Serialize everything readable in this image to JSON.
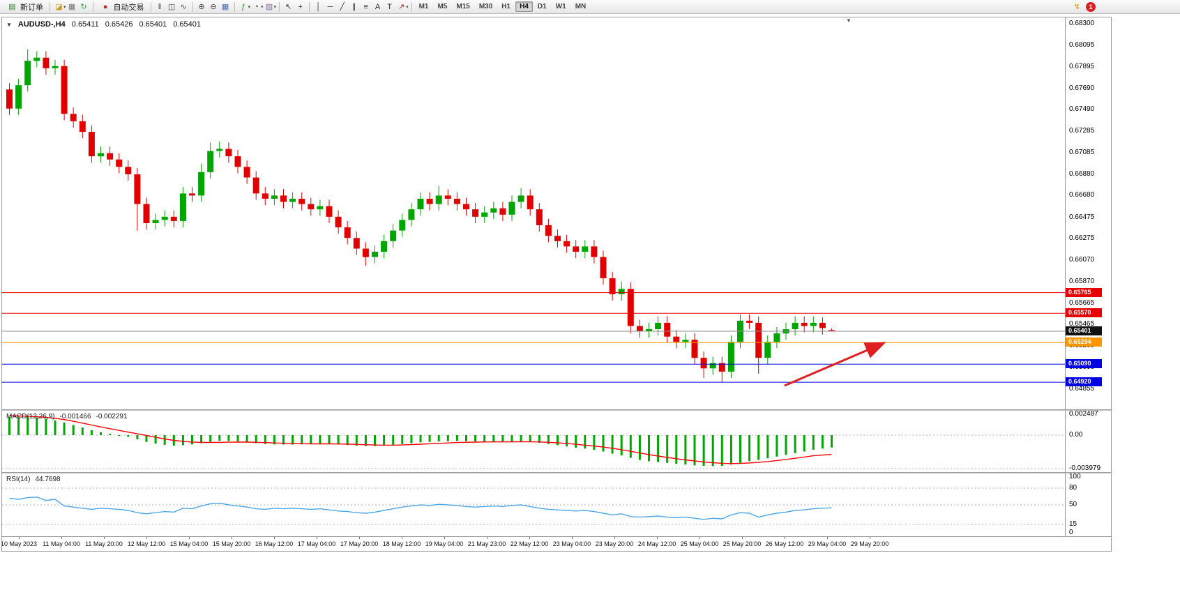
{
  "toolbar": {
    "new_order": {
      "label": "新订单",
      "glyph": "▤",
      "color": "#2d8a2d"
    },
    "autotrading": {
      "label": "自动交易",
      "glyph": "●",
      "color": "#d02020"
    },
    "icon_groups": [
      [
        {
          "name": "new-chart-icon",
          "glyph": "◪",
          "color": "#c89b1e",
          "caret": true
        },
        {
          "name": "print-icon",
          "glyph": "▦",
          "color": "#7a7a7a"
        },
        {
          "name": "refresh-icon",
          "glyph": "↻",
          "color": "#2f9e2f"
        }
      ],
      [
        {
          "name": "bar-chart-icon",
          "glyph": "‖",
          "color": "#444444"
        },
        {
          "name": "candlestick-chart-icon",
          "glyph": "◫",
          "color": "#444444"
        },
        {
          "name": "line-chart-icon",
          "glyph": "∿",
          "color": "#444444"
        }
      ],
      [
        {
          "name": "zoom-in-icon",
          "glyph": "⊕",
          "color": "#444444"
        },
        {
          "name": "zoom-out-icon",
          "glyph": "⊖",
          "color": "#444444"
        },
        {
          "name": "tile-windows-icon",
          "glyph": "▦",
          "color": "#4a6ea9"
        }
      ],
      [
        {
          "name": "indicators-icon",
          "glyph": "ƒ",
          "color": "#2d8a2d",
          "caret": true
        },
        {
          "name": "periods-icon",
          "glyph": "◔",
          "color": "#444444",
          "caret": true
        },
        {
          "name": "templates-icon",
          "glyph": "▨",
          "color": "#8a6bb0",
          "caret": true
        }
      ],
      [
        {
          "name": "cursor-icon",
          "glyph": "↖",
          "color": "#333333"
        },
        {
          "name": "crosshair-icon",
          "glyph": "+",
          "color": "#333333"
        }
      ],
      [
        {
          "name": "vertical-line-icon",
          "glyph": "│",
          "color": "#333333"
        },
        {
          "name": "horizontal-line-icon",
          "glyph": "─",
          "color": "#333333"
        },
        {
          "name": "trendline-icon",
          "glyph": "╱",
          "color": "#333333"
        },
        {
          "name": "channel-icon",
          "glyph": "∥",
          "color": "#333333"
        },
        {
          "name": "fibonacci-icon",
          "glyph": "≡",
          "color": "#333333"
        },
        {
          "name": "text-icon",
          "glyph": "A",
          "color": "#333333"
        },
        {
          "name": "label-icon",
          "glyph": "T",
          "color": "#333333"
        },
        {
          "name": "arrows-icon",
          "glyph": "↗",
          "color": "#b02020",
          "caret": true
        }
      ]
    ],
    "timeframes": [
      "M1",
      "M5",
      "M15",
      "M30",
      "H1",
      "H4",
      "D1",
      "W1",
      "MN"
    ],
    "active_timeframe": "H4",
    "right_icons": [
      {
        "name": "notifications-icon",
        "glyph": "↯",
        "color": "#d98e00"
      }
    ],
    "alert_badge": "1"
  },
  "chart": {
    "header": {
      "symbol_tf": "AUDUSD-,H4",
      "open": "0.65411",
      "high": "0.65426",
      "low": "0.65401",
      "close": "0.65401"
    }
  },
  "chart_data": {
    "type": "candlestick",
    "symbol": "AUDUSD-",
    "timeframe": "H4",
    "colors": {
      "up": "#00A600",
      "down": "#E10000",
      "macd_hist": "#00A600",
      "macd_signal": "#FF0000",
      "rsi_line": "#4DA6E8",
      "level_line": "#b5b5b5"
    },
    "price_axis": {
      "min": 0.64855,
      "max": 0.683,
      "labels": [
        "0.68300",
        "0.68095",
        "0.67895",
        "0.67690",
        "0.67490",
        "0.67285",
        "0.67085",
        "0.66880",
        "0.66680",
        "0.66475",
        "0.66275",
        "0.66070",
        "0.65870",
        "0.65665",
        "0.65465",
        "0.65260",
        "0.65060",
        "0.64855"
      ]
    },
    "time_axis_labels": [
      "10 May 2023",
      "11 May 04:00",
      "11 May 20:00",
      "12 May 12:00",
      "15 May 04:00",
      "15 May 20:00",
      "16 May 12:00",
      "17 May 04:00",
      "17 May 20:00",
      "18 May 12:00",
      "19 May 04:00",
      "21 May 23:00",
      "22 May 12:00",
      "23 May 04:00",
      "23 May 20:00",
      "24 May 12:00",
      "25 May 04:00",
      "25 May 20:00",
      "26 May 12:00",
      "29 May 04:00",
      "29 May 20:00"
    ],
    "candles": [
      [
        0.6768,
        0.6774,
        0.6744,
        0.675
      ],
      [
        0.675,
        0.6778,
        0.6744,
        0.6772
      ],
      [
        0.6772,
        0.6806,
        0.6766,
        0.6795
      ],
      [
        0.6795,
        0.6804,
        0.6789,
        0.6798
      ],
      [
        0.6798,
        0.6804,
        0.6782,
        0.6788
      ],
      [
        0.6788,
        0.6796,
        0.6782,
        0.679
      ],
      [
        0.679,
        0.6796,
        0.6739,
        0.6745
      ],
      [
        0.6745,
        0.6751,
        0.6732,
        0.6738
      ],
      [
        0.6738,
        0.6744,
        0.6722,
        0.6728
      ],
      [
        0.6728,
        0.6734,
        0.6699,
        0.6705
      ],
      [
        0.6705,
        0.6714,
        0.6699,
        0.6708
      ],
      [
        0.6708,
        0.6714,
        0.6696,
        0.6702
      ],
      [
        0.6702,
        0.6708,
        0.6689,
        0.6695
      ],
      [
        0.6695,
        0.6701,
        0.6682,
        0.6688
      ],
      [
        0.6688,
        0.6694,
        0.6635,
        0.666
      ],
      [
        0.666,
        0.6666,
        0.6636,
        0.6642
      ],
      [
        0.6642,
        0.6651,
        0.6636,
        0.6645
      ],
      [
        0.6645,
        0.6654,
        0.6639,
        0.6648
      ],
      [
        0.6648,
        0.6654,
        0.6638,
        0.6644
      ],
      [
        0.6644,
        0.6676,
        0.6638,
        0.667
      ],
      [
        0.667,
        0.6676,
        0.6662,
        0.6668
      ],
      [
        0.6668,
        0.6698,
        0.6662,
        0.669
      ],
      [
        0.669,
        0.6718,
        0.6684,
        0.671
      ],
      [
        0.671,
        0.6719,
        0.6704,
        0.6712
      ],
      [
        0.6712,
        0.6718,
        0.6699,
        0.6705
      ],
      [
        0.6705,
        0.6711,
        0.6689,
        0.6695
      ],
      [
        0.6695,
        0.6701,
        0.6679,
        0.6685
      ],
      [
        0.6685,
        0.6691,
        0.6664,
        0.667
      ],
      [
        0.667,
        0.6676,
        0.6659,
        0.6665
      ],
      [
        0.6665,
        0.6674,
        0.6659,
        0.6668
      ],
      [
        0.6668,
        0.6674,
        0.6656,
        0.6662
      ],
      [
        0.6662,
        0.6671,
        0.6656,
        0.6665
      ],
      [
        0.6665,
        0.6671,
        0.6654,
        0.666
      ],
      [
        0.666,
        0.6666,
        0.6649,
        0.6655
      ],
      [
        0.6655,
        0.6664,
        0.6649,
        0.6658
      ],
      [
        0.6658,
        0.6664,
        0.6642,
        0.6648
      ],
      [
        0.6648,
        0.6654,
        0.6632,
        0.6638
      ],
      [
        0.6638,
        0.6644,
        0.6622,
        0.6628
      ],
      [
        0.6628,
        0.6634,
        0.6612,
        0.6618
      ],
      [
        0.6618,
        0.6624,
        0.6602,
        0.661
      ],
      [
        0.661,
        0.6621,
        0.6604,
        0.6615
      ],
      [
        0.6615,
        0.6631,
        0.6609,
        0.6625
      ],
      [
        0.6625,
        0.6641,
        0.6619,
        0.6635
      ],
      [
        0.6635,
        0.6651,
        0.6629,
        0.6645
      ],
      [
        0.6645,
        0.6661,
        0.6639,
        0.6655
      ],
      [
        0.6655,
        0.6671,
        0.6649,
        0.6665
      ],
      [
        0.6665,
        0.6671,
        0.6654,
        0.666
      ],
      [
        0.666,
        0.6677,
        0.6654,
        0.6668
      ],
      [
        0.6668,
        0.6674,
        0.6659,
        0.6665
      ],
      [
        0.6665,
        0.6671,
        0.6654,
        0.666
      ],
      [
        0.666,
        0.6666,
        0.6649,
        0.6655
      ],
      [
        0.6655,
        0.6661,
        0.6642,
        0.6648
      ],
      [
        0.6648,
        0.6658,
        0.6642,
        0.6652
      ],
      [
        0.6652,
        0.6662,
        0.6646,
        0.6656
      ],
      [
        0.6656,
        0.6662,
        0.6644,
        0.665
      ],
      [
        0.665,
        0.6668,
        0.6644,
        0.6662
      ],
      [
        0.6662,
        0.6675,
        0.6656,
        0.6668
      ],
      [
        0.6668,
        0.6674,
        0.6649,
        0.6655
      ],
      [
        0.6655,
        0.6661,
        0.6634,
        0.664
      ],
      [
        0.664,
        0.6646,
        0.6624,
        0.663
      ],
      [
        0.663,
        0.6636,
        0.6619,
        0.6625
      ],
      [
        0.6625,
        0.6631,
        0.6614,
        0.662
      ],
      [
        0.662,
        0.6626,
        0.6609,
        0.6615
      ],
      [
        0.6615,
        0.6626,
        0.6609,
        0.662
      ],
      [
        0.662,
        0.6626,
        0.6604,
        0.661
      ],
      [
        0.661,
        0.6616,
        0.6584,
        0.659
      ],
      [
        0.659,
        0.6596,
        0.6569,
        0.6575
      ],
      [
        0.6575,
        0.6587,
        0.6569,
        0.658
      ],
      [
        0.658,
        0.6586,
        0.6538,
        0.6545
      ],
      [
        0.6545,
        0.6551,
        0.6534,
        0.654
      ],
      [
        0.654,
        0.6548,
        0.6534,
        0.6542
      ],
      [
        0.6542,
        0.6554,
        0.6536,
        0.6548
      ],
      [
        0.6548,
        0.6554,
        0.6529,
        0.6535
      ],
      [
        0.6535,
        0.6541,
        0.6524,
        0.653
      ],
      [
        0.653,
        0.6538,
        0.6524,
        0.6532
      ],
      [
        0.6532,
        0.6538,
        0.6509,
        0.6515
      ],
      [
        0.6515,
        0.6521,
        0.6496,
        0.6505
      ],
      [
        0.6505,
        0.6516,
        0.6499,
        0.651
      ],
      [
        0.651,
        0.6516,
        0.6492,
        0.6502
      ],
      [
        0.6502,
        0.6536,
        0.6496,
        0.653
      ],
      [
        0.653,
        0.6556,
        0.6524,
        0.655
      ],
      [
        0.655,
        0.6556,
        0.6542,
        0.6548
      ],
      [
        0.6548,
        0.6554,
        0.65,
        0.6515
      ],
      [
        0.6515,
        0.6536,
        0.6509,
        0.653
      ],
      [
        0.653,
        0.6544,
        0.6524,
        0.6538
      ],
      [
        0.6538,
        0.6548,
        0.6532,
        0.6542
      ],
      [
        0.6542,
        0.6554,
        0.6536,
        0.6548
      ],
      [
        0.6548,
        0.6554,
        0.6539,
        0.6545
      ],
      [
        0.6545,
        0.6554,
        0.6539,
        0.6548
      ],
      [
        0.6548,
        0.6553,
        0.6537,
        0.6543
      ],
      [
        0.65411,
        0.65426,
        0.65401,
        0.65401
      ]
    ],
    "hlines": [
      {
        "price": 0.65765,
        "color": "#E60000",
        "box": "#E60000",
        "label": "0.65765",
        "style": "solid"
      },
      {
        "price": 0.6557,
        "color": "#E60000",
        "box": "#E60000",
        "label": "0.65570",
        "style": "solid"
      },
      {
        "price": 0.65401,
        "color": "#8c8c8c",
        "box": "#111111",
        "label": "0.65401",
        "style": "solid",
        "role": "bid"
      },
      {
        "price": 0.65294,
        "color": "#FF9500",
        "box": "#FF9500",
        "label": "0.65294",
        "style": "solid"
      },
      {
        "price": 0.6509,
        "color": "#0000E0",
        "box": "#0000E0",
        "label": "0.65090",
        "style": "solid"
      },
      {
        "price": 0.6492,
        "color": "#0000E0",
        "box": "#0000E0",
        "label": "0.64920",
        "style": "solid"
      }
    ],
    "annotation_arrow": {
      "color": "#E02020"
    },
    "macd": {
      "title": "MACD(12,26,9)",
      "main_value": "-0.001466",
      "signal_value": "-0.002291",
      "max": 0.002487,
      "min": -0.003979,
      "axis_labels": [
        "0.002487",
        "0.00",
        "-0.003979"
      ],
      "hist": [
        0.00215,
        0.0022,
        0.00218,
        0.0021,
        0.00195,
        0.00175,
        0.0015,
        0.0012,
        0.0009,
        0.0006,
        0.00035,
        0.00015,
        0.0,
        -0.0002,
        -0.0005,
        -0.0008,
        -0.001,
        -0.00115,
        -0.00125,
        -0.0012,
        -0.0011,
        -0.00095,
        -0.0008,
        -0.0007,
        -0.0007,
        -0.00075,
        -0.00085,
        -0.00095,
        -0.00105,
        -0.0011,
        -0.00112,
        -0.00112,
        -0.0011,
        -0.00108,
        -0.00105,
        -0.00105,
        -0.0011,
        -0.00118,
        -0.00125,
        -0.0013,
        -0.0013,
        -0.00125,
        -0.00115,
        -0.00105,
        -0.00095,
        -0.00085,
        -0.0008,
        -0.00075,
        -0.00072,
        -0.0007,
        -0.00072,
        -0.00075,
        -0.00078,
        -0.0008,
        -0.0008,
        -0.00078,
        -0.00075,
        -0.0008,
        -0.0009,
        -0.00105,
        -0.0012,
        -0.00135,
        -0.0015,
        -0.0016,
        -0.00175,
        -0.00195,
        -0.0022,
        -0.0024,
        -0.0027,
        -0.00295,
        -0.0031,
        -0.0032,
        -0.0033,
        -0.0034,
        -0.0035,
        -0.0036,
        -0.00365,
        -0.00368,
        -0.00365,
        -0.0035,
        -0.0033,
        -0.0031,
        -0.00295,
        -0.00275,
        -0.00255,
        -0.00235,
        -0.00215,
        -0.00195,
        -0.00175,
        -0.0016,
        -0.00147
      ],
      "signal": [
        0.0023,
        0.00228,
        0.00225,
        0.0022,
        0.00212,
        0.002,
        0.00185,
        0.00165,
        0.00143,
        0.0012,
        0.00098,
        0.00076,
        0.00056,
        0.00036,
        0.00016,
        -4e-05,
        -0.00026,
        -0.00046,
        -0.00062,
        -0.00074,
        -0.00082,
        -0.00086,
        -0.00087,
        -0.00086,
        -0.00084,
        -0.00083,
        -0.00083,
        -0.00085,
        -0.00089,
        -0.00093,
        -0.00097,
        -0.001,
        -0.00102,
        -0.00104,
        -0.00104,
        -0.00104,
        -0.00105,
        -0.00107,
        -0.0011,
        -0.00114,
        -0.00117,
        -0.00119,
        -0.00119,
        -0.00117,
        -0.00113,
        -0.00108,
        -0.00103,
        -0.00098,
        -0.00093,
        -0.00088,
        -0.00085,
        -0.00083,
        -0.00081,
        -0.0008,
        -0.0008,
        -0.0008,
        -0.00079,
        -0.00079,
        -0.00081,
        -0.00085,
        -0.00091,
        -0.00099,
        -0.00109,
        -0.00119,
        -0.0013,
        -0.00142,
        -0.00157,
        -0.00173,
        -0.00192,
        -0.00212,
        -0.00231,
        -0.00249,
        -0.00265,
        -0.0028,
        -0.00294,
        -0.00307,
        -0.00318,
        -0.00328,
        -0.00335,
        -0.00338,
        -0.00336,
        -0.00331,
        -0.00324,
        -0.00314,
        -0.00302,
        -0.00289,
        -0.00275,
        -0.0026,
        -0.00245,
        -0.00237,
        -0.00229
      ]
    },
    "rsi": {
      "title": "RSI(14)",
      "value": "44.7698",
      "min": 0,
      "max": 100,
      "levels": [
        80,
        50,
        15
      ],
      "axis_labels": [
        "100",
        "80",
        "50",
        "15",
        "0"
      ],
      "series": [
        62,
        60,
        63,
        64,
        58,
        60,
        48,
        46,
        44,
        42,
        44,
        43,
        42,
        40,
        36,
        34,
        36,
        38,
        37,
        44,
        43,
        48,
        52,
        53,
        50,
        48,
        46,
        43,
        42,
        44,
        43,
        44,
        43,
        42,
        43,
        41,
        39,
        38,
        36,
        35,
        37,
        40,
        43,
        46,
        48,
        50,
        49,
        51,
        50,
        49,
        47,
        46,
        47,
        48,
        47,
        49,
        50,
        47,
        44,
        42,
        41,
        40,
        39,
        40,
        38,
        35,
        32,
        34,
        29,
        28,
        29,
        30,
        28,
        27,
        28,
        26,
        24,
        26,
        25,
        32,
        36,
        35,
        28,
        32,
        35,
        37,
        40,
        41,
        43,
        44,
        44.77
      ]
    }
  }
}
